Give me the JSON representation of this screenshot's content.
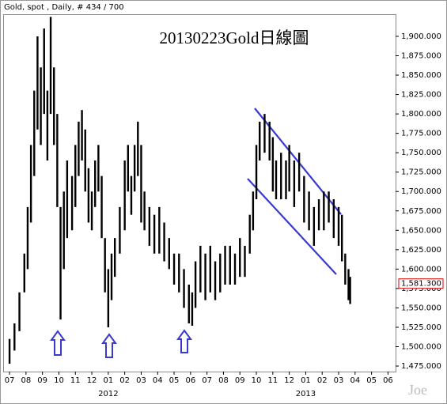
{
  "chart_data": {
    "type": "hilo",
    "header": "Gold, spot , Daily, # 434 / 700",
    "title": "20130223Gold日線圖",
    "watermark": "Joe",
    "color": "#000000",
    "x": [
      0.0,
      0.3,
      0.6,
      0.9,
      1.1,
      1.3,
      1.5,
      1.7,
      1.9,
      2.1,
      2.3,
      2.5,
      2.7,
      2.9,
      3.1,
      3.3,
      3.5,
      3.8,
      4.0,
      4.2,
      4.4,
      4.6,
      4.8,
      5.0,
      5.2,
      5.4,
      5.6,
      5.8,
      6.0,
      6.2,
      6.4,
      6.7,
      7.0,
      7.2,
      7.4,
      7.6,
      7.8,
      8.0,
      8.2,
      8.5,
      8.8,
      9.1,
      9.4,
      9.7,
      10.0,
      10.3,
      10.6,
      10.9,
      11.1,
      11.3,
      11.6,
      11.9,
      12.2,
      12.5,
      12.8,
      13.1,
      13.4,
      13.7,
      14.0,
      14.3,
      14.6,
      14.8,
      15.0,
      15.2,
      15.5,
      15.8,
      16.0,
      16.2,
      16.5,
      16.8,
      17.0,
      17.3,
      17.6,
      17.9,
      18.2,
      18.5,
      18.8,
      19.1,
      19.4,
      19.7,
      20.0,
      20.2,
      20.4,
      20.6,
      20.7
    ],
    "high": [
      1510,
      1530,
      1570,
      1620,
      1680,
      1760,
      1830,
      1900,
      1860,
      1910,
      1830,
      1925,
      1860,
      1800,
      1680,
      1700,
      1740,
      1720,
      1760,
      1790,
      1805,
      1780,
      1730,
      1700,
      1740,
      1760,
      1720,
      1640,
      1600,
      1620,
      1640,
      1680,
      1740,
      1760,
      1720,
      1760,
      1790,
      1760,
      1700,
      1680,
      1670,
      1680,
      1660,
      1640,
      1620,
      1620,
      1600,
      1580,
      1570,
      1610,
      1630,
      1620,
      1630,
      1610,
      1620,
      1630,
      1630,
      1620,
      1640,
      1630,
      1670,
      1700,
      1760,
      1790,
      1800,
      1790,
      1770,
      1740,
      1750,
      1740,
      1760,
      1740,
      1750,
      1720,
      1700,
      1680,
      1690,
      1700,
      1700,
      1690,
      1680,
      1670,
      1620,
      1600,
      1590
    ],
    "low": [
      1478,
      1495,
      1520,
      1570,
      1600,
      1660,
      1720,
      1780,
      1760,
      1800,
      1740,
      1800,
      1760,
      1680,
      1535,
      1600,
      1640,
      1650,
      1680,
      1720,
      1740,
      1700,
      1660,
      1650,
      1680,
      1700,
      1640,
      1570,
      1525,
      1560,
      1590,
      1620,
      1650,
      1700,
      1670,
      1700,
      1720,
      1660,
      1650,
      1630,
      1620,
      1620,
      1610,
      1600,
      1580,
      1570,
      1550,
      1530,
      1527,
      1550,
      1570,
      1560,
      1570,
      1560,
      1570,
      1580,
      1580,
      1580,
      1590,
      1590,
      1620,
      1650,
      1690,
      1740,
      1750,
      1740,
      1700,
      1690,
      1690,
      1690,
      1700,
      1680,
      1700,
      1660,
      1650,
      1630,
      1650,
      1650,
      1660,
      1640,
      1630,
      1610,
      1580,
      1560,
      1555
    ],
    "last_value": {
      "value": 1581.3,
      "label": "1,581.300"
    },
    "xlim": [
      -0.34,
      23.46
    ],
    "xticks": [
      {
        "value": 0,
        "label": "07"
      },
      {
        "value": 1,
        "label": "08"
      },
      {
        "value": 2,
        "label": "09"
      },
      {
        "value": 3,
        "label": "10"
      },
      {
        "value": 4,
        "label": "11"
      },
      {
        "value": 5,
        "label": "12"
      },
      {
        "value": 6,
        "label": "01"
      },
      {
        "value": 7,
        "label": "02"
      },
      {
        "value": 8,
        "label": "03"
      },
      {
        "value": 9,
        "label": "04"
      },
      {
        "value": 10,
        "label": "05"
      },
      {
        "value": 11,
        "label": "06"
      },
      {
        "value": 12,
        "label": "07"
      },
      {
        "value": 13,
        "label": "08"
      },
      {
        "value": 14,
        "label": "09"
      },
      {
        "value": 15,
        "label": "10"
      },
      {
        "value": 16,
        "label": "11"
      },
      {
        "value": 17,
        "label": "12"
      },
      {
        "value": 18,
        "label": "01"
      },
      {
        "value": 19,
        "label": "02"
      },
      {
        "value": 20,
        "label": "03"
      },
      {
        "value": 21,
        "label": "04"
      },
      {
        "value": 22,
        "label": "05"
      },
      {
        "value": 23,
        "label": "06"
      }
    ],
    "years": [
      {
        "value": 6,
        "label": "2012"
      },
      {
        "value": 18,
        "label": "2013"
      }
    ],
    "ylim": [
      1467.9,
      1928.5
    ],
    "yticks": [
      {
        "value": 1475,
        "label": "1,475.000"
      },
      {
        "value": 1500,
        "label": "1,500.000"
      },
      {
        "value": 1525,
        "label": "1,525.000"
      },
      {
        "value": 1550,
        "label": "1,550.000"
      },
      {
        "value": 1575,
        "label": "1,575.000"
      },
      {
        "value": 1600,
        "label": "1,600.000"
      },
      {
        "value": 1625,
        "label": "1,625.000"
      },
      {
        "value": 1650,
        "label": "1,650.000"
      },
      {
        "value": 1675,
        "label": "1,675.000"
      },
      {
        "value": 1700,
        "label": "1,700.000"
      },
      {
        "value": 1725,
        "label": "1,725.000"
      },
      {
        "value": 1750,
        "label": "1,750.000"
      },
      {
        "value": 1775,
        "label": "1,775.000"
      },
      {
        "value": 1800,
        "label": "1,800.000"
      },
      {
        "value": 1825,
        "label": "1,825.000"
      },
      {
        "value": 1850,
        "label": "1,850.000"
      },
      {
        "value": 1875,
        "label": "1,875.000"
      },
      {
        "value": 1900,
        "label": "1,900.000"
      }
    ]
  }
}
